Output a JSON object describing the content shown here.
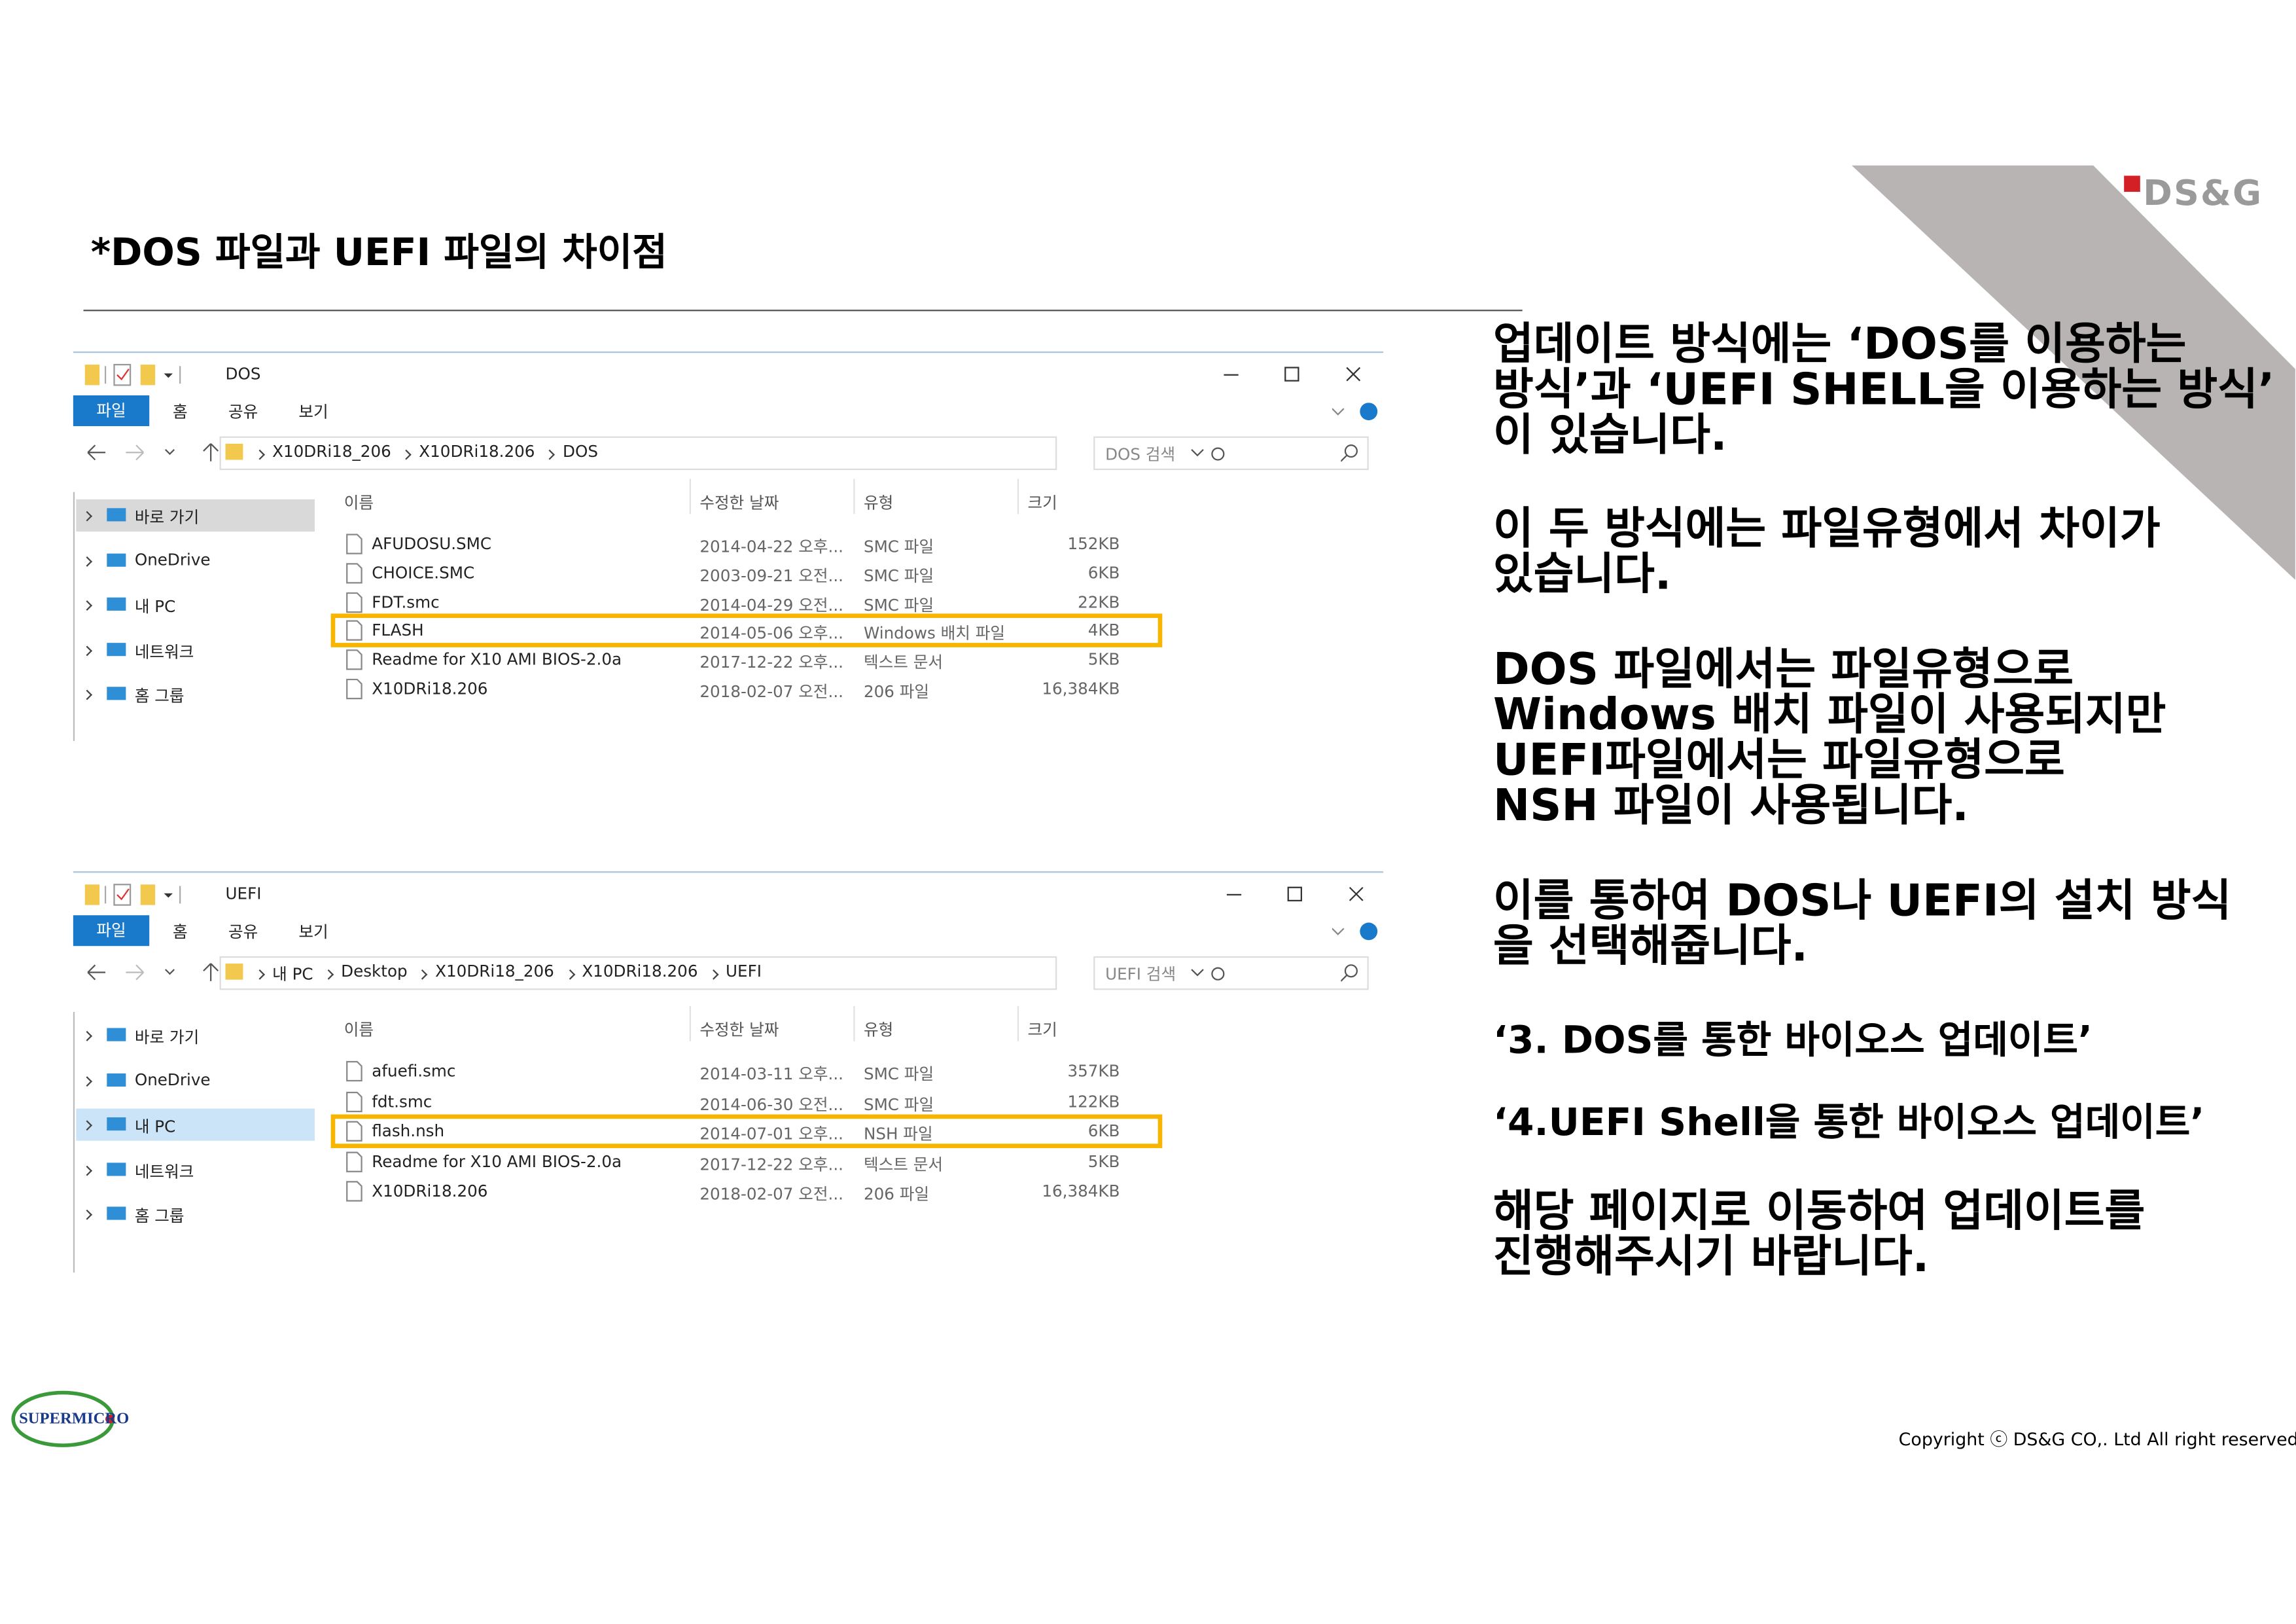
{
  "header": {
    "title": "*DOS 파일과 UEFI 파일의 차이점",
    "logo": "DS&G"
  },
  "windows": [
    {
      "title": "DOS",
      "tabs": [
        "파일",
        "홈",
        "공유",
        "보기"
      ],
      "path": [
        "X10DRi18_206",
        "X10DRi18.206",
        "DOS"
      ],
      "search": "DOS 검색",
      "nav": [
        "바로 가기",
        "OneDrive",
        "내 PC",
        "네트워크",
        "홈 그룹"
      ],
      "selected_nav": 0,
      "columns": [
        "이름",
        "수정한 날짜",
        "유형",
        "크기"
      ],
      "rows": [
        [
          "AFUDOSU.SMC",
          "2014-04-22 오후...",
          "SMC 파일",
          "152KB"
        ],
        [
          "CHOICE.SMC",
          "2003-09-21 오전...",
          "SMC 파일",
          "6KB"
        ],
        [
          "FDT.smc",
          "2014-04-29 오전...",
          "SMC 파일",
          "22KB"
        ],
        [
          "FLASH",
          "2014-05-06 오후...",
          "Windows 배치 파일",
          "4KB"
        ],
        [
          "Readme for X10 AMI BIOS-2.0a",
          "2017-12-22 오후...",
          "텍스트 문서",
          "5KB"
        ],
        [
          "X10DRi18.206",
          "2018-02-07 오전...",
          "206 파일",
          "16,384KB"
        ]
      ],
      "highlighted_row": 3
    },
    {
      "title": "UEFI",
      "tabs": [
        "파일",
        "홈",
        "공유",
        "보기"
      ],
      "path": [
        "내 PC",
        "Desktop",
        "X10DRi18_206",
        "X10DRi18.206",
        "UEFI"
      ],
      "search": "UEFI 검색",
      "nav": [
        "바로 가기",
        "OneDrive",
        "내 PC",
        "네트워크",
        "홈 그룹"
      ],
      "selected_nav": 2,
      "columns": [
        "이름",
        "수정한 날짜",
        "유형",
        "크기"
      ],
      "rows": [
        [
          "afuefi.smc",
          "2014-03-11 오후...",
          "SMC 파일",
          "357KB"
        ],
        [
          "fdt.smc",
          "2014-06-30 오전...",
          "SMC 파일",
          "122KB"
        ],
        [
          "flash.nsh",
          "2014-07-01 오후...",
          "NSH 파일",
          "6KB"
        ],
        [
          "Readme for X10 AMI BIOS-2.0a",
          "2017-12-22 오후...",
          "텍스트 문서",
          "5KB"
        ],
        [
          "X10DRi18.206",
          "2018-02-07 오전...",
          "206 파일",
          "16,384KB"
        ]
      ],
      "highlighted_row": 2
    }
  ],
  "body": {
    "paragraphs": [
      [
        "업데이트 방식에는 ‘DOS를 이용하는",
        "방식’과 ‘UEFI SHELL을 이용하는 방식’",
        "이 있습니다."
      ],
      [
        "이 두 방식에는 파일유형에서 차이가",
        "있습니다."
      ],
      [
        "DOS 파일에서는 파일유형으로",
        "Windows 배치 파일이 사용되지만",
        "UEFI파일에서는 파일유형으로",
        "NSH 파일이 사용됩니다."
      ],
      [
        "이를 통하여 DOS나 UEFI의 설치 방식",
        "을 선택해줍니다."
      ],
      [
        "‘3. DOS를 통한 바이오스 업데이트’"
      ],
      [
        "‘4.UEFI Shell을 통한 바이오스 업데이트’"
      ],
      [
        "해당 페이지로 이동하여 업데이트를",
        "진행해주시기 바랍니다."
      ]
    ]
  },
  "footer": {
    "copyright": "Copyright ⓒ DS&G CO,. Ltd  All right reserved.",
    "brand": "SUPERMICRO"
  }
}
